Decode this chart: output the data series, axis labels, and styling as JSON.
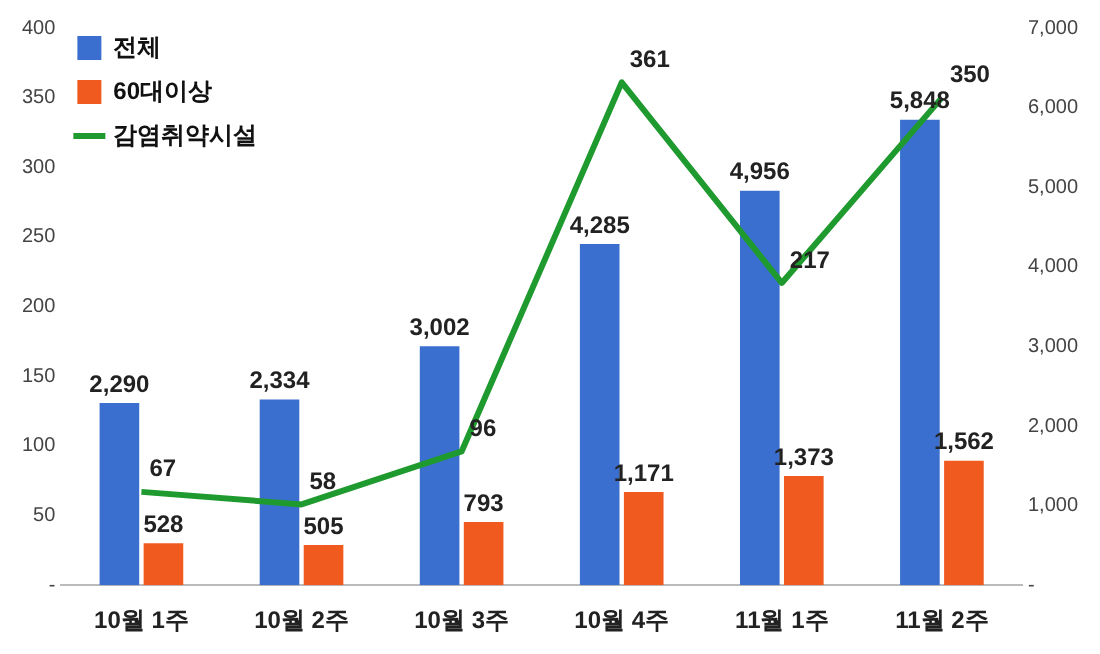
{
  "chart_data": {
    "type": "bar",
    "categories": [
      "10월 1주",
      "10월 2주",
      "10월 3주",
      "10월 4주",
      "11월 1주",
      "11월 2주"
    ],
    "series": [
      {
        "name": "전체",
        "color": "#3a6fd0",
        "axis": "y2",
        "values": [
          2290,
          2334,
          3002,
          4285,
          4956,
          5848
        ],
        "value_labels": [
          "2,290",
          "2,334",
          "3,002",
          "4,285",
          "4,956",
          "5,848"
        ]
      },
      {
        "name": "60대이상",
        "color": "#f05a1e",
        "axis": "y2",
        "values": [
          528,
          505,
          793,
          1171,
          1373,
          1562
        ],
        "value_labels": [
          "528",
          "505",
          "793",
          "1,171",
          "1,373",
          "1,562"
        ]
      },
      {
        "name": "감염취약시설",
        "type": "line",
        "color": "#1f9a2e",
        "values": [
          67,
          58,
          96,
          361,
          217,
          350
        ],
        "value_labels": [
          "67",
          "58",
          "96",
          "361",
          "217",
          "350"
        ]
      }
    ],
    "ylim": [
      0,
      400
    ],
    "yticks": [
      {
        "value": 0,
        "label": "-"
      },
      50,
      100,
      150,
      200,
      250,
      300,
      350,
      400
    ],
    "y2lim": [
      0,
      7000
    ],
    "y2ticks": [
      {
        "value": 0,
        "label": "-"
      },
      {
        "value": 1000,
        "label": "1,000"
      },
      {
        "value": 2000,
        "label": "2,000"
      },
      {
        "value": 3000,
        "label": "3,000"
      },
      {
        "value": 4000,
        "label": "4,000"
      },
      {
        "value": 5000,
        "label": "5,000"
      },
      {
        "value": 6000,
        "label": "6,000"
      },
      {
        "value": 7000,
        "label": "7,000"
      }
    ],
    "legend": "top left",
    "grid": false,
    "marker": "none"
  }
}
